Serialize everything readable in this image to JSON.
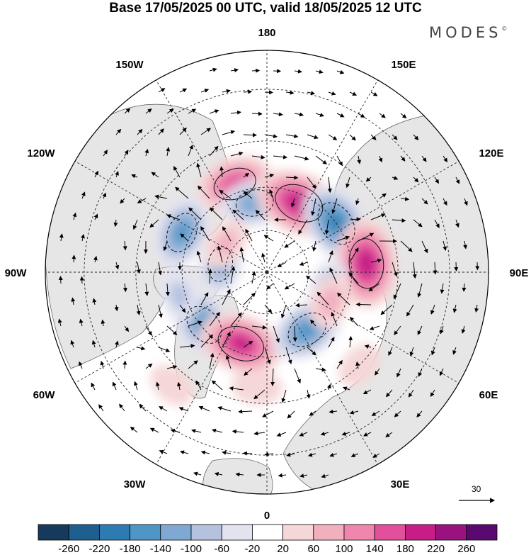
{
  "title": "Base 17/05/2025 00 UTC, valid 18/05/2025 12 UTC",
  "logo": "MODES",
  "logo_mark": "©",
  "projection": "north-polar-stereographic",
  "longitude_labels": {
    "top": "180",
    "bottom": "0",
    "left": "90W",
    "right": "90E",
    "upper_left_1": "150W",
    "upper_left_2": "120W",
    "upper_right_1": "150E",
    "upper_right_2": "120E",
    "lower_left_1": "60W",
    "lower_left_2": "30W",
    "lower_right_1": "60E",
    "lower_right_2": "30E"
  },
  "reference_vector": {
    "value": "30"
  },
  "colorbar": {
    "ticks": [
      "-260",
      "-220",
      "-180",
      "-140",
      "-100",
      "-60",
      "-20",
      "20",
      "60",
      "100",
      "140",
      "180",
      "220",
      "260"
    ],
    "colors": [
      "#163a5c",
      "#1f5f8f",
      "#2e7bb4",
      "#4f95c6",
      "#7fa9d3",
      "#b4c2e0",
      "#e3e3f0",
      "#ffffff",
      "#f6d7d7",
      "#f2b0bf",
      "#ee86ae",
      "#e24f9b",
      "#c61d87",
      "#99137e",
      "#5a0a6f"
    ]
  },
  "anomalies": [
    {
      "lon": -160,
      "lat": 57,
      "value": 160
    },
    {
      "lon": -170,
      "lat": 65,
      "value": -120
    },
    {
      "lon": 155,
      "lat": 63,
      "value": 210
    },
    {
      "lon": 125,
      "lat": 60,
      "value": -180
    },
    {
      "lon": 95,
      "lat": 55,
      "value": 210
    },
    {
      "lon": -115,
      "lat": 57,
      "value": -140
    },
    {
      "lon": -50,
      "lat": 61,
      "value": -150
    },
    {
      "lon": -20,
      "lat": 63,
      "value": 190
    },
    {
      "lon": 35,
      "lat": 65,
      "value": -150
    },
    {
      "lon": 75,
      "lat": 67,
      "value": -80
    },
    {
      "lon": -100,
      "lat": 73,
      "value": -100
    },
    {
      "lon": -125,
      "lat": 72,
      "value": 60
    },
    {
      "lon": -75,
      "lat": 58,
      "value": -60
    },
    {
      "lon": -40,
      "lat": 40,
      "value": 40
    },
    {
      "lon": 65,
      "lat": 65,
      "value": 70
    },
    {
      "lon": 45,
      "lat": 45,
      "value": 40
    },
    {
      "lon": -5,
      "lat": 50,
      "value": 50
    }
  ]
}
